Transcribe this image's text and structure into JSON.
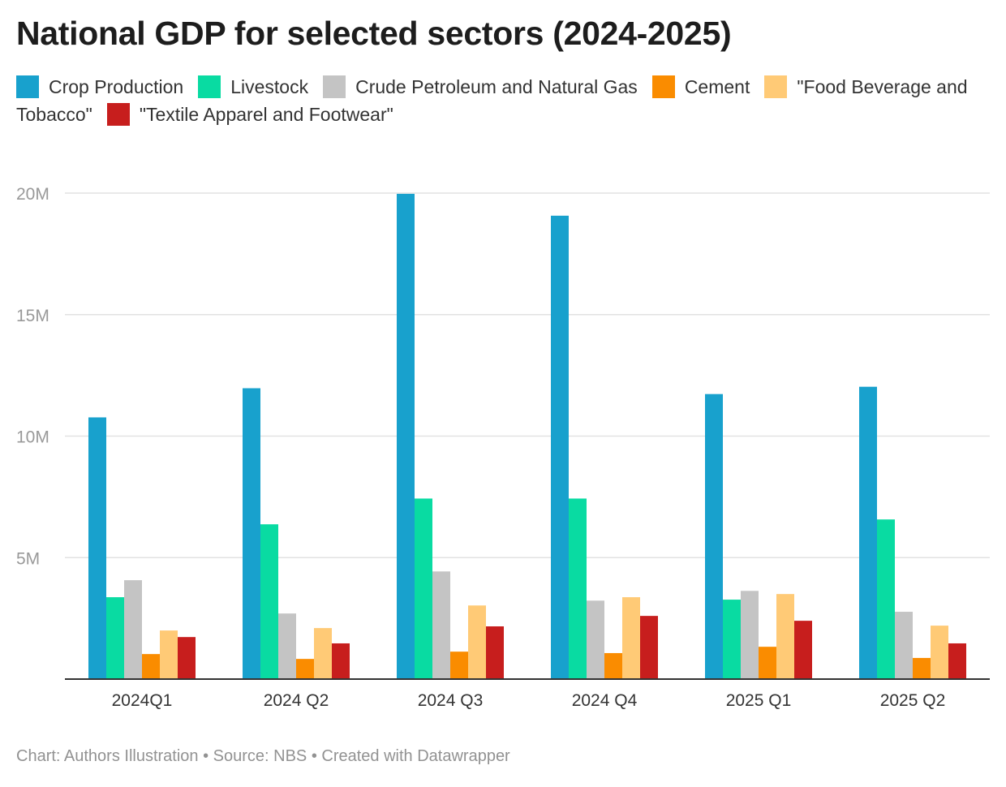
{
  "title": "National GDP for selected sectors (2024-2025)",
  "footer": "Chart: Authors Illustration • Source: NBS • Created with Datawrapper",
  "chart_data": {
    "type": "bar",
    "title": "National GDP for selected sectors (2024-2025)",
    "categories": [
      "2024Q1",
      "2024 Q2",
      "2024 Q3",
      "2024 Q4",
      "2025 Q1",
      "2025 Q2"
    ],
    "ylim": [
      0,
      20000000
    ],
    "yticks": [
      {
        "v": 5000000,
        "label": "5M"
      },
      {
        "v": 10000000,
        "label": "10M"
      },
      {
        "v": 15000000,
        "label": "15M"
      },
      {
        "v": 20000000,
        "label": "20M"
      }
    ],
    "grid": true,
    "legend": "top",
    "series": [
      {
        "name": "Crop Production",
        "color": "#18a1cd",
        "values": [
          10770000,
          11970000,
          19970000,
          19070000,
          11730000,
          12030000
        ]
      },
      {
        "name": "Livestock",
        "color": "#09dba2",
        "values": [
          3370000,
          6370000,
          7430000,
          7430000,
          3270000,
          6570000
        ]
      },
      {
        "name": "Crude Petroleum and Natural Gas",
        "color": "#c4c4c4",
        "values": [
          4070000,
          2700000,
          4430000,
          3230000,
          3630000,
          2770000
        ]
      },
      {
        "name": "Cement",
        "color": "#fa8c00",
        "values": [
          1030000,
          830000,
          1130000,
          1070000,
          1330000,
          870000
        ]
      },
      {
        "name": "\"Food Beverage and Tobacco\"",
        "color": "#ffca76",
        "values": [
          2000000,
          2100000,
          3030000,
          3370000,
          3500000,
          2200000
        ]
      },
      {
        "name": "\"Textile Apparel and Footwear\"",
        "color": "#c71e1d",
        "values": [
          1730000,
          1470000,
          2170000,
          2600000,
          2400000,
          1470000
        ]
      }
    ]
  }
}
